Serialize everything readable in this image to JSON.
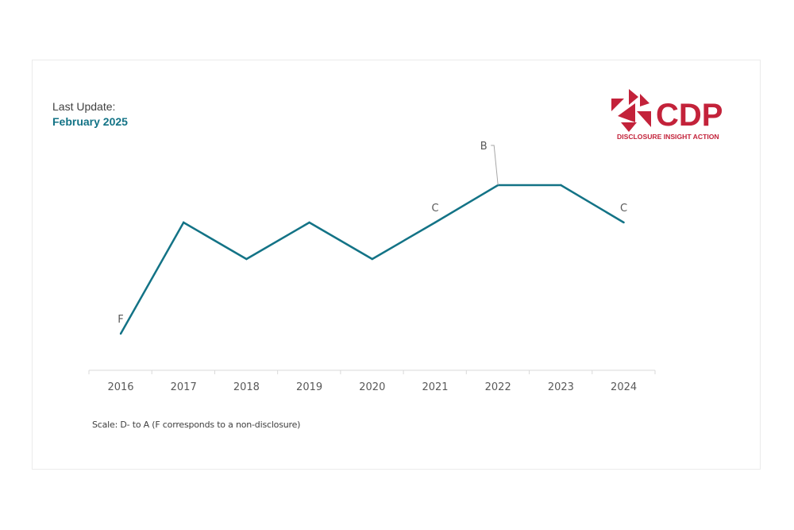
{
  "header": {
    "update_label": "Last Update:",
    "update_date": "February 2025"
  },
  "logo": {
    "text": "CDP",
    "tagline": "DISCLOSURE INSIGHT ACTION",
    "color": "#c3223a"
  },
  "footer": {
    "scale_note": "Scale: D- to A (F corresponds to a non-disclosure)"
  },
  "colors": {
    "line": "#137386",
    "axis": "#d9d9d9",
    "tick_text": "#595959",
    "label_text": "#595959"
  },
  "chart_data": {
    "type": "line",
    "title": "",
    "xlabel": "",
    "ylabel": "",
    "categories": [
      "2016",
      "2017",
      "2018",
      "2019",
      "2020",
      "2021",
      "2022",
      "2023",
      "2024"
    ],
    "y_scale": [
      "F",
      "D-",
      "D",
      "C-",
      "C",
      "B-",
      "B",
      "A-",
      "A"
    ],
    "series": [
      {
        "values": [
          "F",
          "C",
          "C-",
          "C",
          "C-",
          "C",
          "B",
          "B",
          "C"
        ]
      }
    ],
    "data_labels": [
      {
        "category": "2016",
        "text": "F"
      },
      {
        "category": "2021",
        "text": "C"
      },
      {
        "category": "2022",
        "text": "B"
      },
      {
        "category": "2024",
        "text": "C"
      }
    ],
    "grid": false,
    "legend": "none"
  }
}
